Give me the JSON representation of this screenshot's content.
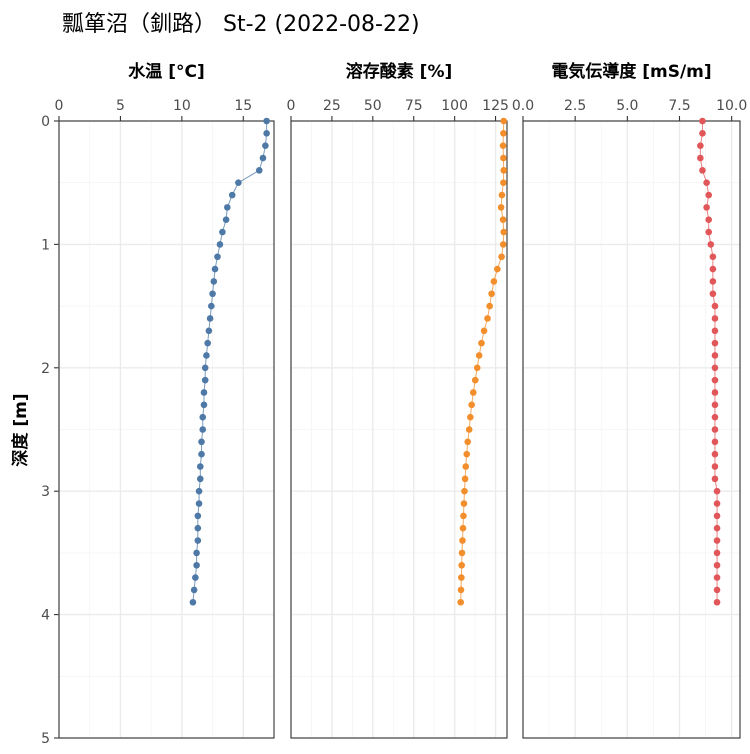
{
  "title": "瓢箪沼（釧路） St-2 (2022-08-22)",
  "ylabel": "深度 [m]",
  "chart_data": {
    "type": "line",
    "title": "瓢箪沼（釧路） St-2 (2022-08-22)",
    "ylabel": "深度 [m]",
    "ylim": [
      0,
      5
    ],
    "y_reversed": true,
    "y_ticks": [
      0,
      1,
      2,
      3,
      4,
      5
    ],
    "grid": true,
    "depth": [
      0.0,
      0.1,
      0.2,
      0.3,
      0.4,
      0.5,
      0.6,
      0.7,
      0.8,
      0.9,
      1.0,
      1.1,
      1.2,
      1.3,
      1.4,
      1.5,
      1.6,
      1.7,
      1.8,
      1.9,
      2.0,
      2.1,
      2.2,
      2.3,
      2.4,
      2.5,
      2.6,
      2.7,
      2.8,
      2.9,
      3.0,
      3.1,
      3.2,
      3.3,
      3.4,
      3.5,
      3.6,
      3.7,
      3.8,
      3.9
    ],
    "panels": [
      {
        "title": "水温 [°C]",
        "color": "#4e79a7",
        "xlim": [
          0,
          17.5
        ],
        "x_ticks": [
          0,
          5,
          10,
          15
        ],
        "x_tick_labels": [
          "0",
          "5",
          "10",
          "15"
        ],
        "values": [
          16.9,
          16.9,
          16.8,
          16.6,
          16.3,
          14.6,
          14.1,
          13.7,
          13.6,
          13.3,
          13.1,
          12.9,
          12.7,
          12.6,
          12.5,
          12.4,
          12.3,
          12.2,
          12.1,
          12.0,
          11.9,
          11.9,
          11.8,
          11.8,
          11.7,
          11.7,
          11.6,
          11.6,
          11.5,
          11.5,
          11.4,
          11.4,
          11.3,
          11.3,
          11.3,
          11.2,
          11.2,
          11.1,
          11.0,
          10.9
        ]
      },
      {
        "title": "溶存酸素 [%]",
        "color": "#f28e2b",
        "xlim": [
          0,
          132
        ],
        "x_ticks": [
          0,
          25,
          50,
          75,
          100,
          125
        ],
        "x_tick_labels": [
          "0",
          "25",
          "50",
          "75",
          "100",
          "125"
        ],
        "values": [
          130.0,
          129.8,
          129.6,
          129.8,
          130.0,
          129.8,
          128.9,
          128.4,
          129.6,
          130.0,
          129.7,
          128.7,
          126.1,
          124.0,
          122.6,
          121.4,
          120.1,
          118.0,
          116.4,
          115.0,
          113.8,
          112.6,
          111.4,
          110.4,
          109.6,
          108.9,
          108.0,
          107.4,
          106.8,
          106.4,
          106.0,
          105.7,
          105.4,
          105.1,
          104.8,
          104.5,
          104.3,
          104.1,
          103.9,
          103.7
        ]
      },
      {
        "title": "電気伝導度 [mS/m]",
        "color": "#e15759",
        "xlim": [
          0,
          10.4
        ],
        "x_ticks": [
          0,
          2.5,
          5.0,
          7.5,
          10.0
        ],
        "x_tick_labels": [
          "0.0",
          "2.5",
          "5.0",
          "7.5",
          "10.0"
        ],
        "values": [
          8.6,
          8.6,
          8.5,
          8.5,
          8.6,
          8.8,
          8.9,
          8.8,
          8.9,
          8.9,
          9.0,
          9.1,
          9.1,
          9.1,
          9.1,
          9.2,
          9.2,
          9.2,
          9.2,
          9.2,
          9.2,
          9.2,
          9.2,
          9.2,
          9.2,
          9.2,
          9.2,
          9.2,
          9.2,
          9.2,
          9.3,
          9.3,
          9.3,
          9.3,
          9.3,
          9.3,
          9.3,
          9.3,
          9.3,
          9.3
        ]
      }
    ]
  }
}
